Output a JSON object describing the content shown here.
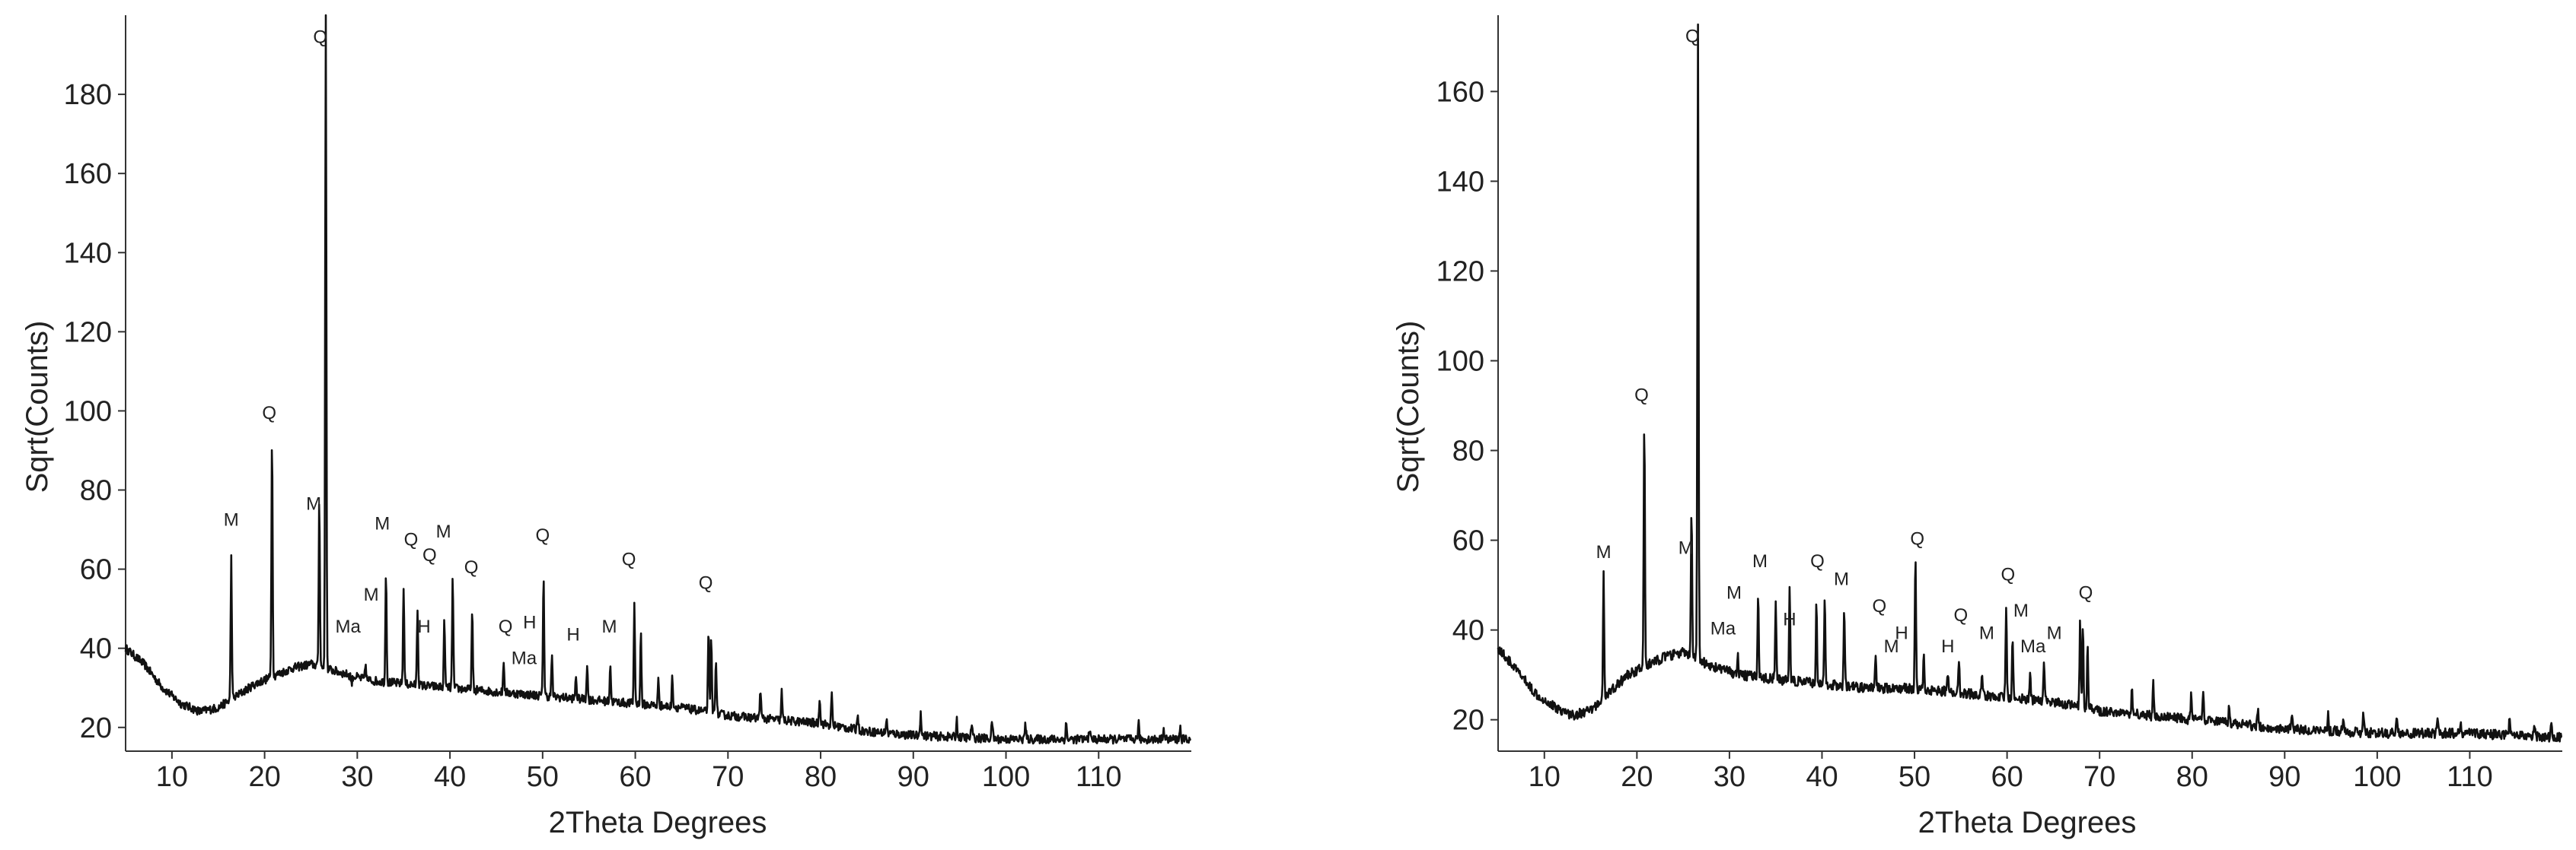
{
  "chart_data": [
    {
      "type": "line",
      "xlabel": "2Theta Degrees",
      "ylabel": "Sqrt(Counts)",
      "xlim": [
        5,
        120
      ],
      "ylim": [
        14,
        200
      ],
      "xticks": [
        10,
        20,
        30,
        40,
        50,
        60,
        70,
        80,
        90,
        100,
        110
      ],
      "yticks": [
        20,
        40,
        60,
        80,
        100,
        120,
        140,
        160,
        180
      ],
      "grid": false,
      "line_color": "#111111",
      "background": [
        [
          5,
          40
        ],
        [
          7,
          36
        ],
        [
          9,
          30
        ],
        [
          11,
          26
        ],
        [
          13,
          24
        ],
        [
          15,
          25
        ],
        [
          17,
          28
        ],
        [
          19,
          31
        ],
        [
          21,
          33
        ],
        [
          23,
          35
        ],
        [
          25,
          36
        ],
        [
          28,
          34
        ],
        [
          31,
          32
        ],
        [
          35,
          31
        ],
        [
          40,
          30
        ],
        [
          45,
          29
        ],
        [
          50,
          28
        ],
        [
          55,
          27
        ],
        [
          60,
          26
        ],
        [
          65,
          25
        ],
        [
          70,
          23
        ],
        [
          75,
          22
        ],
        [
          80,
          21
        ],
        [
          85,
          19
        ],
        [
          90,
          18
        ],
        [
          100,
          17
        ],
        [
          110,
          17
        ],
        [
          120,
          17
        ]
      ],
      "peaks": [
        [
          16.4,
          63
        ],
        [
          20.8,
          94
        ],
        [
          25.9,
          78
        ],
        [
          26.6,
          199
        ],
        [
          29.4,
          31
        ],
        [
          30.9,
          36
        ],
        [
          33.1,
          60
        ],
        [
          35.0,
          56
        ],
        [
          36.5,
          50
        ],
        [
          39.4,
          47
        ],
        [
          40.3,
          58
        ],
        [
          42.4,
          49
        ],
        [
          45.8,
          37
        ],
        [
          50.1,
          59
        ],
        [
          51.0,
          38
        ],
        [
          53.6,
          33
        ],
        [
          54.8,
          36
        ],
        [
          57.3,
          36
        ],
        [
          59.9,
          51
        ],
        [
          60.6,
          44
        ],
        [
          62.5,
          32
        ],
        [
          64.0,
          33
        ],
        [
          67.9,
          45
        ],
        [
          68.2,
          42
        ],
        [
          68.7,
          38
        ],
        [
          73.5,
          30
        ],
        [
          75.8,
          29
        ],
        [
          79.9,
          28
        ],
        [
          81.2,
          28
        ],
        [
          84.0,
          24
        ],
        [
          87.1,
          22
        ],
        [
          90.8,
          24
        ],
        [
          94.7,
          22
        ],
        [
          96.3,
          21
        ],
        [
          98.5,
          22
        ],
        [
          102.1,
          21
        ],
        [
          106.5,
          21
        ],
        [
          109.0,
          20
        ],
        [
          114.3,
          21
        ],
        [
          117.0,
          20
        ],
        [
          118.8,
          20
        ]
      ],
      "peak_labels": [
        {
          "text": "M",
          "x": 16.4,
          "y": 71
        },
        {
          "text": "Q",
          "x": 20.5,
          "y": 98
        },
        {
          "text": "M",
          "x": 25.3,
          "y": 75
        },
        {
          "text": "Q",
          "x": 26.0,
          "y": 193
        },
        {
          "text": "Ma",
          "x": 29.0,
          "y": 44
        },
        {
          "text": "M",
          "x": 31.5,
          "y": 52
        },
        {
          "text": "M",
          "x": 32.7,
          "y": 70
        },
        {
          "text": "Q",
          "x": 35.8,
          "y": 66
        },
        {
          "text": "M",
          "x": 39.3,
          "y": 68
        },
        {
          "text": "Q",
          "x": 37.8,
          "y": 62
        },
        {
          "text": "H",
          "x": 37.2,
          "y": 44
        },
        {
          "text": "Q",
          "x": 42.3,
          "y": 59
        },
        {
          "text": "Q",
          "x": 46.0,
          "y": 44
        },
        {
          "text": "Ma",
          "x": 48.0,
          "y": 36
        },
        {
          "text": "H",
          "x": 48.6,
          "y": 45
        },
        {
          "text": "Q",
          "x": 50.0,
          "y": 67
        },
        {
          "text": "H",
          "x": 53.3,
          "y": 42
        },
        {
          "text": "M",
          "x": 57.2,
          "y": 44
        },
        {
          "text": "Q",
          "x": 59.3,
          "y": 61
        },
        {
          "text": "Q",
          "x": 67.6,
          "y": 55
        }
      ]
    },
    {
      "type": "line",
      "xlabel": "2Theta Degrees",
      "ylabel": "Sqrt(Counts)",
      "xlim": [
        5,
        120
      ],
      "ylim": [
        13,
        177
      ],
      "xticks": [
        10,
        20,
        30,
        40,
        50,
        60,
        70,
        80,
        90,
        100,
        110
      ],
      "yticks": [
        20,
        40,
        60,
        80,
        100,
        120,
        140,
        160
      ],
      "grid": false,
      "line_color": "#111111",
      "background": [
        [
          5,
          36
        ],
        [
          7,
          31
        ],
        [
          9,
          26
        ],
        [
          11,
          23
        ],
        [
          13,
          21
        ],
        [
          15,
          22
        ],
        [
          17,
          26
        ],
        [
          19,
          30
        ],
        [
          21,
          32
        ],
        [
          23,
          34
        ],
        [
          25,
          35
        ],
        [
          28,
          32
        ],
        [
          31,
          30
        ],
        [
          35,
          29
        ],
        [
          40,
          28
        ],
        [
          45,
          27
        ],
        [
          50,
          27
        ],
        [
          55,
          26
        ],
        [
          60,
          25
        ],
        [
          65,
          24
        ],
        [
          70,
          22
        ],
        [
          75,
          21
        ],
        [
          80,
          20
        ],
        [
          85,
          19
        ],
        [
          90,
          18
        ],
        [
          100,
          17
        ],
        [
          110,
          17
        ],
        [
          120,
          16
        ]
      ],
      "peaks": [
        [
          16.4,
          52
        ],
        [
          20.8,
          87
        ],
        [
          25.9,
          66
        ],
        [
          26.6,
          176
        ],
        [
          29.4,
          31
        ],
        [
          30.9,
          34
        ],
        [
          33.1,
          49
        ],
        [
          35.0,
          46
        ],
        [
          36.5,
          49
        ],
        [
          39.4,
          46
        ],
        [
          40.3,
          47
        ],
        [
          42.4,
          44
        ],
        [
          45.8,
          35
        ],
        [
          50.1,
          56
        ],
        [
          51.0,
          34
        ],
        [
          53.6,
          30
        ],
        [
          54.8,
          33
        ],
        [
          57.3,
          30
        ],
        [
          59.9,
          46
        ],
        [
          60.6,
          38
        ],
        [
          62.5,
          30
        ],
        [
          64.0,
          33
        ],
        [
          67.9,
          42
        ],
        [
          68.2,
          40
        ],
        [
          68.7,
          36
        ],
        [
          73.5,
          27
        ],
        [
          75.8,
          28
        ],
        [
          79.9,
          26
        ],
        [
          81.2,
          26
        ],
        [
          84.0,
          23
        ],
        [
          87.1,
          22
        ],
        [
          90.8,
          22
        ],
        [
          94.7,
          21
        ],
        [
          96.3,
          20
        ],
        [
          98.5,
          21
        ],
        [
          102.1,
          20
        ],
        [
          106.5,
          20
        ],
        [
          109.0,
          19
        ],
        [
          114.3,
          20
        ],
        [
          117.0,
          19
        ],
        [
          118.8,
          19
        ]
      ],
      "peak_labels": [
        {
          "text": "M",
          "x": 16.4,
          "y": 56
        },
        {
          "text": "Q",
          "x": 20.5,
          "y": 91
        },
        {
          "text": "M",
          "x": 25.3,
          "y": 57
        },
        {
          "text": "Q",
          "x": 26.0,
          "y": 171
        },
        {
          "text": "Ma",
          "x": 29.3,
          "y": 39
        },
        {
          "text": "M",
          "x": 30.5,
          "y": 47
        },
        {
          "text": "M",
          "x": 33.3,
          "y": 54
        },
        {
          "text": "H",
          "x": 36.5,
          "y": 41
        },
        {
          "text": "Q",
          "x": 39.5,
          "y": 54
        },
        {
          "text": "M",
          "x": 42.1,
          "y": 50
        },
        {
          "text": "Q",
          "x": 46.2,
          "y": 44
        },
        {
          "text": "M",
          "x": 47.5,
          "y": 35
        },
        {
          "text": "H",
          "x": 48.6,
          "y": 38
        },
        {
          "text": "Q",
          "x": 50.3,
          "y": 59
        },
        {
          "text": "Q",
          "x": 55.0,
          "y": 42
        },
        {
          "text": "H",
          "x": 53.6,
          "y": 35
        },
        {
          "text": "M",
          "x": 57.8,
          "y": 38
        },
        {
          "text": "Q",
          "x": 60.1,
          "y": 51
        },
        {
          "text": "M",
          "x": 61.5,
          "y": 43
        },
        {
          "text": "Ma",
          "x": 62.8,
          "y": 35
        },
        {
          "text": "M",
          "x": 65.1,
          "y": 38
        },
        {
          "text": "Q",
          "x": 68.5,
          "y": 47
        }
      ]
    }
  ]
}
